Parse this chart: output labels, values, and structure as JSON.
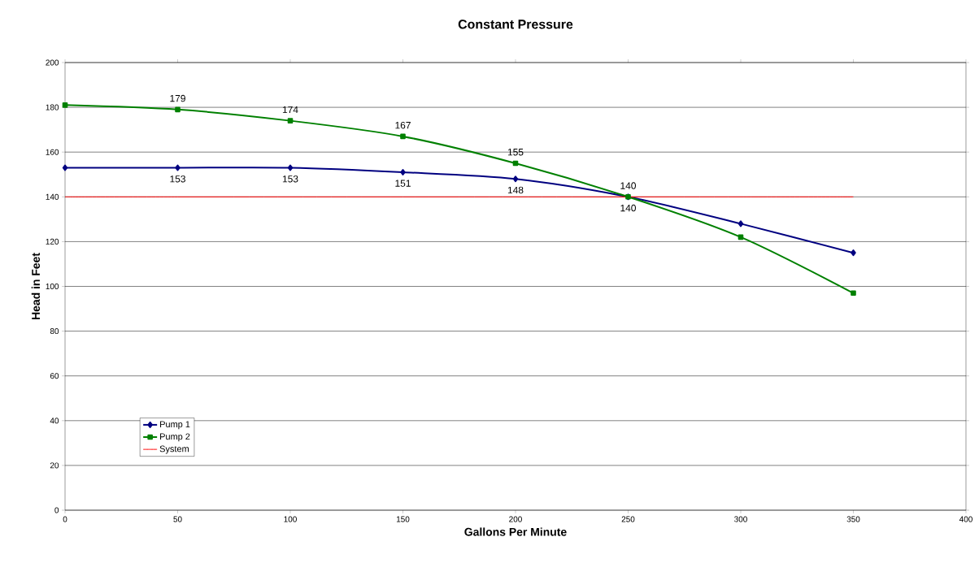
{
  "chart_data": {
    "type": "line",
    "title": "Constant Pressure",
    "xlabel": "Gallons Per Minute",
    "ylabel": "Head in Feet",
    "x": [
      0,
      50,
      100,
      150,
      200,
      250,
      300,
      350
    ],
    "series": [
      {
        "name": "Pump 1",
        "color": "#000080",
        "marker": "diamond",
        "values": [
          153,
          153,
          153,
          151,
          148,
          140,
          128,
          115
        ],
        "value_labels": [
          null,
          "153",
          "153",
          "151",
          "148",
          "140",
          null,
          null
        ]
      },
      {
        "name": "Pump 2",
        "color": "#008000",
        "marker": "square",
        "values": [
          181,
          179,
          174,
          167,
          155,
          140,
          122,
          97
        ],
        "value_labels": [
          null,
          "179",
          "174",
          "167",
          "155",
          "140",
          null,
          null
        ]
      },
      {
        "name": "System",
        "color": "#ff0000",
        "marker": "none",
        "values": [
          140,
          140,
          140,
          140,
          140,
          140,
          140,
          140
        ]
      }
    ],
    "xlim": [
      0,
      400
    ],
    "xticks": [
      0,
      50,
      100,
      150,
      200,
      250,
      300,
      350,
      400
    ],
    "ylim": [
      0,
      200
    ],
    "yticks": [
      0,
      20,
      40,
      60,
      80,
      100,
      120,
      140,
      160,
      180,
      200
    ],
    "grid": "y",
    "legend": "bottom left"
  }
}
